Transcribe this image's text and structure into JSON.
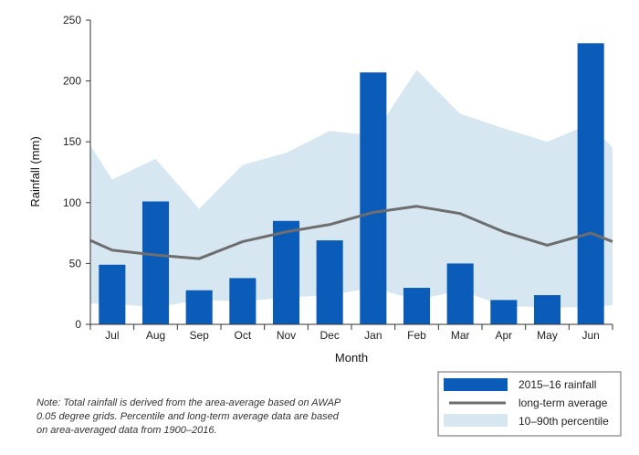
{
  "chart_data": {
    "type": "bar",
    "categories": [
      "Jul",
      "Aug",
      "Sep",
      "Oct",
      "Nov",
      "Dec",
      "Jan",
      "Feb",
      "Mar",
      "Apr",
      "May",
      "Jun"
    ],
    "series": [
      {
        "name": "2015–16 rainfall",
        "type": "bar",
        "color": "#0b5cb8",
        "values": [
          49,
          101,
          28,
          38,
          85,
          69,
          207,
          30,
          50,
          20,
          24,
          231
        ]
      },
      {
        "name": "long-term average",
        "type": "line",
        "color": "#6e6e6e",
        "values": [
          61,
          57,
          54,
          68,
          76,
          82,
          92,
          97,
          91,
          76,
          65,
          75
        ],
        "start": 69,
        "end": 68
      }
    ],
    "percentile_band": {
      "name": "10–90th percentile",
      "color": "#d6e7f2",
      "upper": [
        119,
        136,
        95,
        131,
        141,
        159,
        155,
        209,
        173,
        161,
        150,
        165
      ],
      "lower": [
        17,
        14,
        20,
        19,
        22,
        24,
        30,
        20,
        28,
        15,
        14,
        14
      ],
      "upper_start": 147,
      "upper_end": 145,
      "lower_start": 17,
      "lower_end": 16
    },
    "xlabel": "Month",
    "ylabel": "Rainfall (mm)",
    "ylim": [
      0,
      250
    ],
    "yticks": [
      0,
      50,
      100,
      150,
      200,
      250
    ],
    "grid": false,
    "legend_position": "bottom-right"
  },
  "note": "Note: Total rainfall is derived from the area-average based on AWAP 0.05 degree grids. Percentile and long-term average data are based on area-averaged data from 1900–2016."
}
